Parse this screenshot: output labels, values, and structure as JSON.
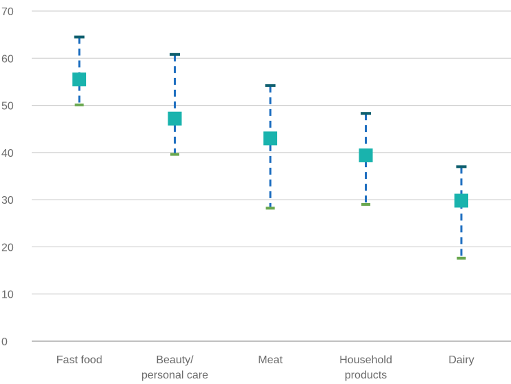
{
  "chart_data": {
    "type": "scatter",
    "title": "",
    "xlabel": "",
    "ylabel": "",
    "ylim": [
      0,
      70
    ],
    "yticks": [
      0,
      10,
      20,
      30,
      40,
      50,
      60,
      70
    ],
    "grid": true,
    "categories": [
      [
        "Fast food"
      ],
      [
        "Beauty/",
        "personal care"
      ],
      [
        "Meat"
      ],
      [
        "Household",
        "products"
      ],
      [
        "Dairy"
      ]
    ],
    "series": [
      {
        "role": "high",
        "values": [
          64.5,
          60.8,
          54.2,
          48.3,
          37.0
        ]
      },
      {
        "role": "average",
        "values": [
          55.5,
          47.2,
          43.0,
          39.4,
          29.8
        ]
      },
      {
        "role": "low",
        "values": [
          50.1,
          39.6,
          28.2,
          29.0,
          17.6
        ]
      }
    ],
    "colors": {
      "high_cap": "#0f5f6e",
      "low_cap": "#6aa84f",
      "marker": "#19b3ad",
      "dashed_range": "#1f6fc0"
    }
  }
}
